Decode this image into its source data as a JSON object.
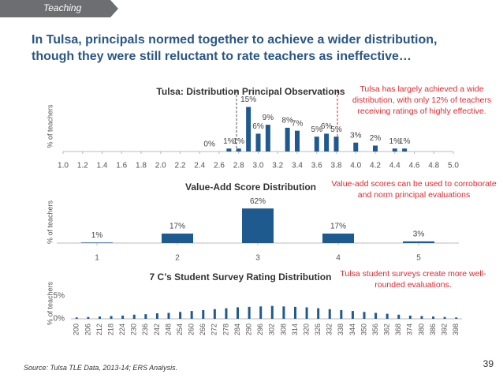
{
  "header": {
    "section": "Teaching",
    "title": "In Tulsa, principals normed together to achieve a wider distribution, though they were still reluctant to rate teachers as ineffective…",
    "source_label": "Source:",
    "source": "Tulsa TLE Data, 2013-14; ERS Analysis.",
    "page": "39"
  },
  "chart_data": [
    {
      "type": "bar",
      "title": "Tulsa: Distribution Principal Observations",
      "y_label": "% of teachers",
      "annotation": "Tulsa has largely achieved a wide distribution, with only 12% of teachers receiving ratings of highly effective.",
      "color": "#1f5a8f",
      "x": [
        2.5,
        2.7,
        2.8,
        2.9,
        3.0,
        3.1,
        3.3,
        3.4,
        3.6,
        3.7,
        3.8,
        4.0,
        4.2,
        4.4,
        4.5
      ],
      "values": [
        0,
        1,
        1,
        15,
        6,
        9,
        8,
        7,
        5,
        6,
        5,
        3,
        2,
        1,
        1
      ],
      "value_labels": [
        "0%",
        "1%",
        "1%",
        "15%",
        "6%",
        "9%",
        "8%",
        "7%",
        "5%",
        "6%",
        "5%",
        "3%",
        "2%",
        "1%",
        "1%"
      ],
      "xlim": [
        1,
        5
      ],
      "ylim": [
        0,
        17
      ],
      "xticks": [
        {
          "value": 1,
          "label": "1.0"
        },
        1.2,
        1.4,
        1.6,
        1.8,
        {
          "value": 2,
          "label": "2.0"
        },
        2.2,
        2.4,
        2.6,
        2.8,
        {
          "value": 3,
          "label": "3.0"
        },
        3.2,
        3.4,
        3.6,
        3.8,
        {
          "value": 4,
          "label": "4.0"
        },
        4.2,
        4.4,
        4.6,
        4.8,
        {
          "value": 5,
          "label": "5.0"
        }
      ]
    },
    {
      "type": "bar",
      "title": "Value-Add Score Distribution",
      "y_label": "% of teachers",
      "annotation": "Value-add scores can be used to corroborate and norm principal evaluations",
      "color": "#1f5a8f",
      "x": [
        1,
        2,
        3,
        4,
        5
      ],
      "values": [
        1,
        17,
        62,
        17,
        3
      ],
      "value_labels": [
        "1%",
        "17%",
        "62%",
        "17%",
        "3%"
      ],
      "xlim": [
        0.5,
        5.5
      ],
      "ylim": [
        0,
        75
      ],
      "xticks": [
        1,
        2,
        3,
        4,
        5
      ]
    },
    {
      "type": "bar",
      "title": "7 C’s Student Survey Rating Distribution",
      "y_label": "% of teachers",
      "annotation": "Tulsa student surveys create more well-rounded evaluations.",
      "color": "#1f5a8f",
      "categories": [
        "200",
        "206",
        "212",
        "218",
        "224",
        "230",
        "236",
        "242",
        "248",
        "254",
        "260",
        "266",
        "272",
        "278",
        "284",
        "290",
        "296",
        "302",
        "308",
        "314",
        "320",
        "326",
        "332",
        "338",
        "344",
        "350",
        "356",
        "362",
        "368",
        "374",
        "380",
        "386",
        "392",
        "398"
      ],
      "values": [
        0.3,
        0.4,
        0.5,
        0.6,
        0.7,
        0.9,
        1.0,
        1.2,
        1.3,
        1.5,
        1.7,
        1.9,
        2.1,
        2.3,
        2.5,
        2.6,
        2.7,
        2.8,
        2.7,
        2.6,
        2.5,
        2.3,
        2.1,
        1.9,
        1.7,
        1.5,
        1.3,
        1.1,
        0.9,
        0.7,
        0.6,
        0.5,
        0.4,
        0.3
      ],
      "ylim": [
        0,
        6.7
      ],
      "yticks": [
        {
          "value": 0,
          "label": "0%"
        },
        {
          "value": 5,
          "label": "5%"
        }
      ]
    }
  ]
}
